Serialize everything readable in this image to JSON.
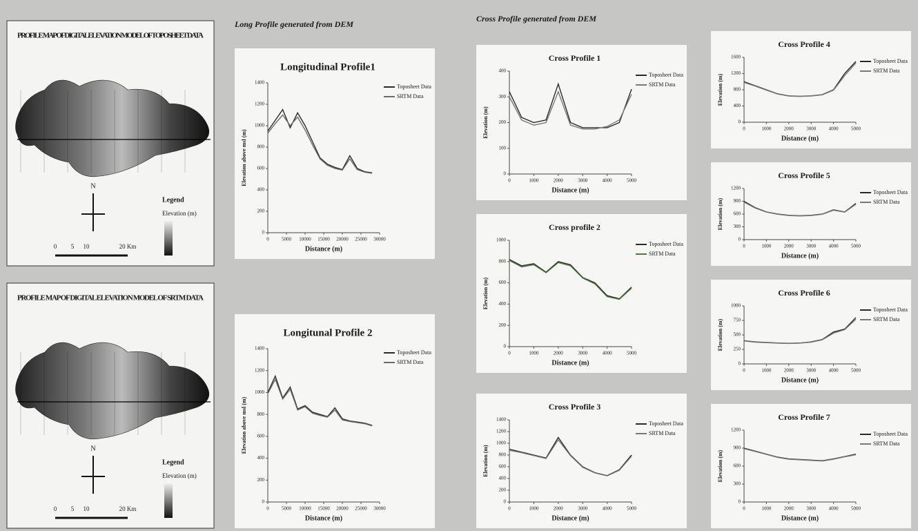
{
  "headers": {
    "long": "Long Profile generated from DEM",
    "cross": "Cross Profile generated from DEM"
  },
  "maps": [
    {
      "title": "PROFILE MAP OF DIGITAL ELEVATION MODEL OF TOPOSHEET DATA",
      "north": "N",
      "legend_title": "Legend",
      "legend_sub": "Elevation (m)",
      "scale": [
        "0",
        "5",
        "10",
        "20 Km"
      ]
    },
    {
      "title": "PROFILE MAP OF DIGITAL ELEVATION MODEL OF SRTM DATA",
      "north": "N",
      "legend_title": "Legend",
      "legend_sub": "Elevation (m)",
      "scale": [
        "0",
        "5",
        "10",
        "20 Km"
      ]
    }
  ],
  "chart_data": [
    {
      "type": "line",
      "title": "Longitudinal Profile1",
      "x_label": "Distance (m)",
      "y_label": "Elevation above msl (m)",
      "x": [
        0,
        2000,
        4000,
        6000,
        8000,
        10000,
        12000,
        14000,
        16000,
        18000,
        20000,
        22000,
        24000,
        26000,
        28000
      ],
      "series": [
        {
          "name": "Toposheet Data",
          "color": "#2a2a2a",
          "values": [
            950,
            1050,
            1150,
            980,
            1120,
            1000,
            850,
            700,
            640,
            610,
            590,
            720,
            600,
            570,
            560
          ]
        },
        {
          "name": "SRTM Data",
          "color": "#6a6a6a",
          "values": [
            930,
            1020,
            1100,
            1000,
            1080,
            960,
            820,
            690,
            630,
            600,
            585,
            690,
            590,
            565,
            555
          ]
        }
      ],
      "xlim": [
        0,
        30000
      ],
      "xticks": [
        0,
        5000,
        10000,
        15000,
        20000,
        25000,
        30000
      ],
      "ylim": [
        0,
        1400
      ],
      "yticks": [
        0,
        200,
        400,
        600,
        800,
        1000,
        1200,
        1400
      ]
    },
    {
      "type": "line",
      "title": "Longitunal Profile 2",
      "x_label": "Distance (m)",
      "y_label": "Elevation above msl (m)",
      "x": [
        0,
        2000,
        4000,
        6000,
        8000,
        10000,
        12000,
        14000,
        16000,
        18000,
        20000,
        22000,
        24000,
        26000,
        28000
      ],
      "series": [
        {
          "name": "Toposheet Data",
          "color": "#2a2a2a",
          "values": [
            1000,
            1150,
            950,
            1050,
            850,
            880,
            820,
            800,
            780,
            860,
            760,
            740,
            730,
            720,
            700
          ]
        },
        {
          "name": "SRTM Data",
          "color": "#6a6a6a",
          "values": [
            990,
            1120,
            940,
            1030,
            840,
            870,
            810,
            790,
            775,
            840,
            750,
            735,
            725,
            715,
            695
          ]
        }
      ],
      "xlim": [
        0,
        30000
      ],
      "xticks": [
        0,
        5000,
        10000,
        15000,
        20000,
        25000,
        30000
      ],
      "ylim": [
        0,
        1400
      ],
      "yticks": [
        0,
        200,
        400,
        600,
        800,
        1000,
        1200,
        1400
      ]
    },
    {
      "type": "line",
      "title": "Cross Profile 1",
      "x_label": "Distance (m)",
      "y_label": "Elevation (m)",
      "x": [
        0,
        500,
        1000,
        1500,
        2000,
        2500,
        3000,
        3500,
        4000,
        4500,
        5000
      ],
      "series": [
        {
          "name": "Toposheet Data",
          "color": "#2a2a2a",
          "values": [
            320,
            220,
            200,
            210,
            350,
            200,
            180,
            180,
            180,
            200,
            330
          ]
        },
        {
          "name": "SRTM Data",
          "color": "#777777",
          "values": [
            300,
            210,
            190,
            200,
            320,
            190,
            175,
            175,
            185,
            210,
            310
          ]
        }
      ],
      "xlim": [
        0,
        5000
      ],
      "xticks": [
        0,
        1000,
        2000,
        3000,
        4000,
        5000
      ],
      "ylim": [
        0,
        400
      ],
      "yticks": [
        0,
        100,
        200,
        300,
        400
      ]
    },
    {
      "type": "line",
      "title": "Cross profile 2",
      "x_label": "Distance (m)",
      "y_label": "Elevation (m)",
      "x": [
        0,
        500,
        1000,
        1500,
        2000,
        2500,
        3000,
        3500,
        4000,
        4500,
        5000
      ],
      "series": [
        {
          "name": "Toposheet Data",
          "color": "#2a2a2a",
          "values": [
            820,
            760,
            780,
            700,
            800,
            770,
            650,
            600,
            480,
            450,
            560
          ]
        },
        {
          "name": "SRTM Data",
          "color": "#4a7a3a",
          "values": [
            810,
            750,
            770,
            695,
            790,
            760,
            645,
            590,
            470,
            445,
            550
          ]
        }
      ],
      "xlim": [
        0,
        5000
      ],
      "xticks": [
        0,
        1000,
        2000,
        3000,
        4000,
        5000
      ],
      "ylim": [
        0,
        1000
      ],
      "yticks": [
        0,
        200,
        400,
        600,
        800,
        1000
      ]
    },
    {
      "type": "line",
      "title": "Cross Profile 3",
      "x_label": "Distance (m)",
      "y_label": "Elevation (m)",
      "x": [
        0,
        500,
        1000,
        1500,
        2000,
        2500,
        3000,
        3500,
        4000,
        4500,
        5000
      ],
      "series": [
        {
          "name": "Toposheet Data",
          "color": "#2a2a2a",
          "values": [
            900,
            850,
            800,
            750,
            1100,
            800,
            600,
            500,
            450,
            550,
            800
          ]
        },
        {
          "name": "SRTM Data",
          "color": "#777777",
          "values": [
            880,
            840,
            790,
            740,
            1060,
            790,
            590,
            495,
            445,
            540,
            780
          ]
        }
      ],
      "xlim": [
        0,
        5000
      ],
      "xticks": [
        0,
        1000,
        2000,
        3000,
        4000,
        5000
      ],
      "ylim": [
        0,
        1400
      ],
      "yticks": [
        0,
        200,
        400,
        600,
        800,
        1000,
        1200,
        1400
      ]
    },
    {
      "type": "line",
      "title": "Cross Profile 4",
      "x_label": "Distance (m)",
      "y_label": "Elevation (m)",
      "x": [
        0,
        500,
        1000,
        1500,
        2000,
        2500,
        3000,
        3500,
        4000,
        4500,
        5000
      ],
      "series": [
        {
          "name": "Toposheet Data",
          "color": "#2a2a2a",
          "values": [
            1000,
            900,
            800,
            700,
            650,
            640,
            650,
            680,
            800,
            1200,
            1500
          ]
        },
        {
          "name": "SRTM Data",
          "color": "#777777",
          "values": [
            980,
            890,
            790,
            695,
            645,
            635,
            645,
            675,
            790,
            1150,
            1460
          ]
        }
      ],
      "xlim": [
        0,
        5000
      ],
      "xticks": [
        0,
        1000,
        2000,
        3000,
        4000,
        5000
      ],
      "ylim": [
        0,
        1600
      ],
      "yticks": [
        0,
        400,
        800,
        1200,
        1600
      ]
    },
    {
      "type": "line",
      "title": "Cross Profile 5",
      "x_label": "Distance (m)",
      "y_label": "Elevation (m)",
      "x": [
        0,
        500,
        1000,
        1500,
        2000,
        2500,
        3000,
        3500,
        4000,
        4500,
        5000
      ],
      "series": [
        {
          "name": "Toposheet Data",
          "color": "#2a2a2a",
          "values": [
            900,
            750,
            650,
            600,
            570,
            560,
            570,
            600,
            700,
            650,
            850
          ]
        },
        {
          "name": "SRTM Data",
          "color": "#777777",
          "values": [
            880,
            740,
            645,
            595,
            565,
            555,
            565,
            595,
            690,
            645,
            830
          ]
        }
      ],
      "xlim": [
        0,
        5000
      ],
      "xticks": [
        0,
        1000,
        2000,
        3000,
        4000,
        5000
      ],
      "ylim": [
        0,
        1200
      ],
      "yticks": [
        0,
        300,
        600,
        900,
        1200
      ]
    },
    {
      "type": "line",
      "title": "Cross Profile 6",
      "x_label": "Distance (m)",
      "y_label": "Elevation (m)",
      "x": [
        0,
        500,
        1000,
        1500,
        2000,
        2500,
        3000,
        3500,
        4000,
        4500,
        5000
      ],
      "series": [
        {
          "name": "Toposheet Data",
          "color": "#2a2a2a",
          "values": [
            400,
            380,
            370,
            360,
            355,
            360,
            380,
            420,
            550,
            600,
            800
          ]
        },
        {
          "name": "SRTM Data",
          "color": "#777777",
          "values": [
            395,
            375,
            365,
            358,
            352,
            358,
            375,
            415,
            530,
            590,
            770
          ]
        }
      ],
      "xlim": [
        0,
        5000
      ],
      "xticks": [
        0,
        1000,
        2000,
        3000,
        4000,
        5000
      ],
      "ylim": [
        0,
        1000
      ],
      "yticks": [
        0,
        250,
        500,
        750,
        1000
      ]
    },
    {
      "type": "line",
      "title": "Cross Profile 7",
      "x_label": "Distance (m)",
      "y_label": "Elevation (m)",
      "x": [
        0,
        500,
        1000,
        1500,
        2000,
        2500,
        3000,
        3500,
        4000,
        4500,
        5000
      ],
      "series": [
        {
          "name": "Toposheet Data",
          "color": "#2a2a2a",
          "values": [
            900,
            850,
            800,
            750,
            720,
            710,
            700,
            690,
            720,
            760,
            800
          ]
        },
        {
          "name": "SRTM Data",
          "color": "#777777",
          "values": [
            890,
            845,
            795,
            745,
            715,
            705,
            695,
            685,
            715,
            755,
            790
          ]
        }
      ],
      "xlim": [
        0,
        5000
      ],
      "xticks": [
        0,
        1000,
        2000,
        3000,
        4000,
        5000
      ],
      "ylim": [
        0,
        1200
      ],
      "yticks": [
        0,
        300,
        600,
        900,
        1200
      ]
    }
  ]
}
